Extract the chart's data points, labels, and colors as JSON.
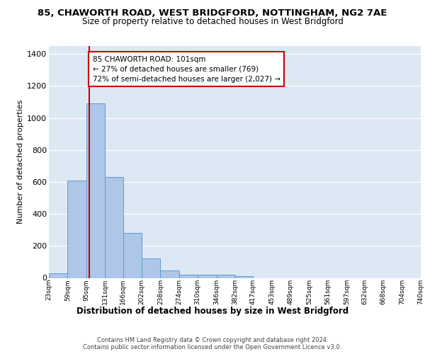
{
  "title1": "85, CHAWORTH ROAD, WEST BRIDGFORD, NOTTINGHAM, NG2 7AE",
  "title2": "Size of property relative to detached houses in West Bridgford",
  "xlabel": "Distribution of detached houses by size in West Bridgford",
  "ylabel": "Number of detached properties",
  "footnote1": "Contains HM Land Registry data © Crown copyright and database right 2024.",
  "footnote2": "Contains public sector information licensed under the Open Government Licence v3.0.",
  "bar_left_edges": [
    23,
    59,
    95,
    131,
    166,
    202,
    238,
    274,
    310,
    346,
    382,
    417,
    453,
    489,
    525,
    561,
    597,
    632,
    668,
    704
  ],
  "bar_widths": [
    36,
    36,
    36,
    35,
    36,
    36,
    36,
    36,
    36,
    36,
    35,
    36,
    36,
    36,
    36,
    36,
    35,
    36,
    36,
    36
  ],
  "bar_heights": [
    28,
    610,
    1090,
    630,
    280,
    120,
    45,
    22,
    20,
    18,
    12,
    0,
    0,
    0,
    0,
    0,
    0,
    0,
    0,
    0
  ],
  "tick_labels": [
    "23sqm",
    "59sqm",
    "95sqm",
    "131sqm",
    "166sqm",
    "202sqm",
    "238sqm",
    "274sqm",
    "310sqm",
    "346sqm",
    "382sqm",
    "417sqm",
    "453sqm",
    "489sqm",
    "525sqm",
    "561sqm",
    "597sqm",
    "632sqm",
    "668sqm",
    "704sqm",
    "740sqm"
  ],
  "tick_positions": [
    23,
    59,
    95,
    131,
    166,
    202,
    238,
    274,
    310,
    346,
    382,
    417,
    453,
    489,
    525,
    561,
    597,
    632,
    668,
    704,
    740
  ],
  "bar_color": "#aec6e8",
  "bar_edge_color": "#5a9fd4",
  "bg_color": "#dde8f5",
  "grid_color": "#ffffff",
  "vline_x": 101,
  "vline_color": "#cc0000",
  "ylim": [
    0,
    1450
  ],
  "xlim": [
    23,
    740
  ],
  "annotation_text": "85 CHAWORTH ROAD: 101sqm\n← 27% of detached houses are smaller (769)\n72% of semi-detached houses are larger (2,027) →",
  "ann_box_color": "#ffffff",
  "ann_box_edge_color": "#cc0000",
  "title1_fontsize": 9.5,
  "title2_fontsize": 8.5,
  "ylabel_fontsize": 8,
  "xlabel_fontsize": 8.5,
  "ytick_fontsize": 8,
  "xtick_fontsize": 6.5,
  "footnote_fontsize": 6.0
}
